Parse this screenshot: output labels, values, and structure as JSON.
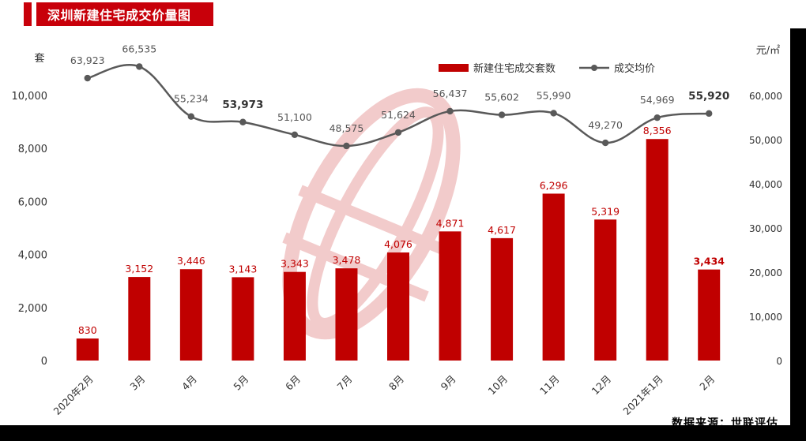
{
  "header": {
    "title": "深圳新建住宅成交价量图"
  },
  "footer": {
    "source": "数据来源：世联评估"
  },
  "colors": {
    "bar": "#c00000",
    "line": "#595959",
    "accent": "#c8000a"
  },
  "chart_data": {
    "type": "bar+line",
    "categories": [
      "2020年2月",
      "3月",
      "4月",
      "5月",
      "6月",
      "7月",
      "8月",
      "9月",
      "10月",
      "11月",
      "12月",
      "2021年1月",
      "2月"
    ],
    "series": [
      {
        "name": "新建住宅成交套数",
        "type": "bar",
        "axis": "left",
        "values": [
          830,
          3152,
          3446,
          3143,
          3343,
          3478,
          4076,
          4871,
          4617,
          6296,
          5319,
          8356,
          3434
        ],
        "labels": [
          "830",
          "3,152",
          "3,446",
          "3,143",
          "3,343",
          "3,478",
          "4,076",
          "4,871",
          "4,617",
          "6,296",
          "5,319",
          "8,356",
          "3,434"
        ]
      },
      {
        "name": "成交均价",
        "type": "line",
        "axis": "right",
        "values": [
          63923,
          66535,
          55234,
          53973,
          51100,
          48575,
          51624,
          56437,
          55602,
          55990,
          49270,
          54969,
          55920
        ],
        "labels": [
          "63,923",
          "66,535",
          "55,234",
          "53,973",
          "51,100",
          "48,575",
          "51,624",
          "56,437",
          "55,602",
          "55,990",
          "49,270",
          "54,969",
          "55,920"
        ]
      }
    ],
    "ylabel_left": "套",
    "ylabel_right": "元/㎡",
    "ylim_left": [
      0,
      10000
    ],
    "ylim_right": [
      0,
      60000
    ],
    "yticks_left": [
      "0",
      "2,000",
      "4,000",
      "6,000",
      "8,000",
      "10,000"
    ],
    "yticks_right": [
      "0",
      "10,000",
      "20,000",
      "30,000",
      "40,000",
      "50,000",
      "60,000"
    ],
    "legend_position": "top-right",
    "grid": false
  }
}
